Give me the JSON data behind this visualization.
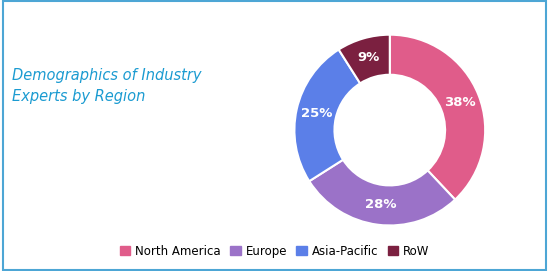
{
  "title": "Demographics of Industry\nExperts by Region",
  "title_color": "#1B9BD1",
  "segments": [
    "North America",
    "Europe",
    "Asia-Pacific",
    "RoW"
  ],
  "values": [
    38,
    28,
    25,
    9
  ],
  "colors": [
    "#E05C8A",
    "#9B72C8",
    "#5B7FE8",
    "#7B2040"
  ],
  "labels": [
    "38%",
    "28%",
    "25%",
    "9%"
  ],
  "label_color": "#ffffff",
  "label_fontsize": 9.5,
  "background_color": "#ffffff",
  "border_color": "#4DA6D5",
  "donut_width": 0.42,
  "title_fontsize": 10.5,
  "legend_fontsize": 8.5
}
